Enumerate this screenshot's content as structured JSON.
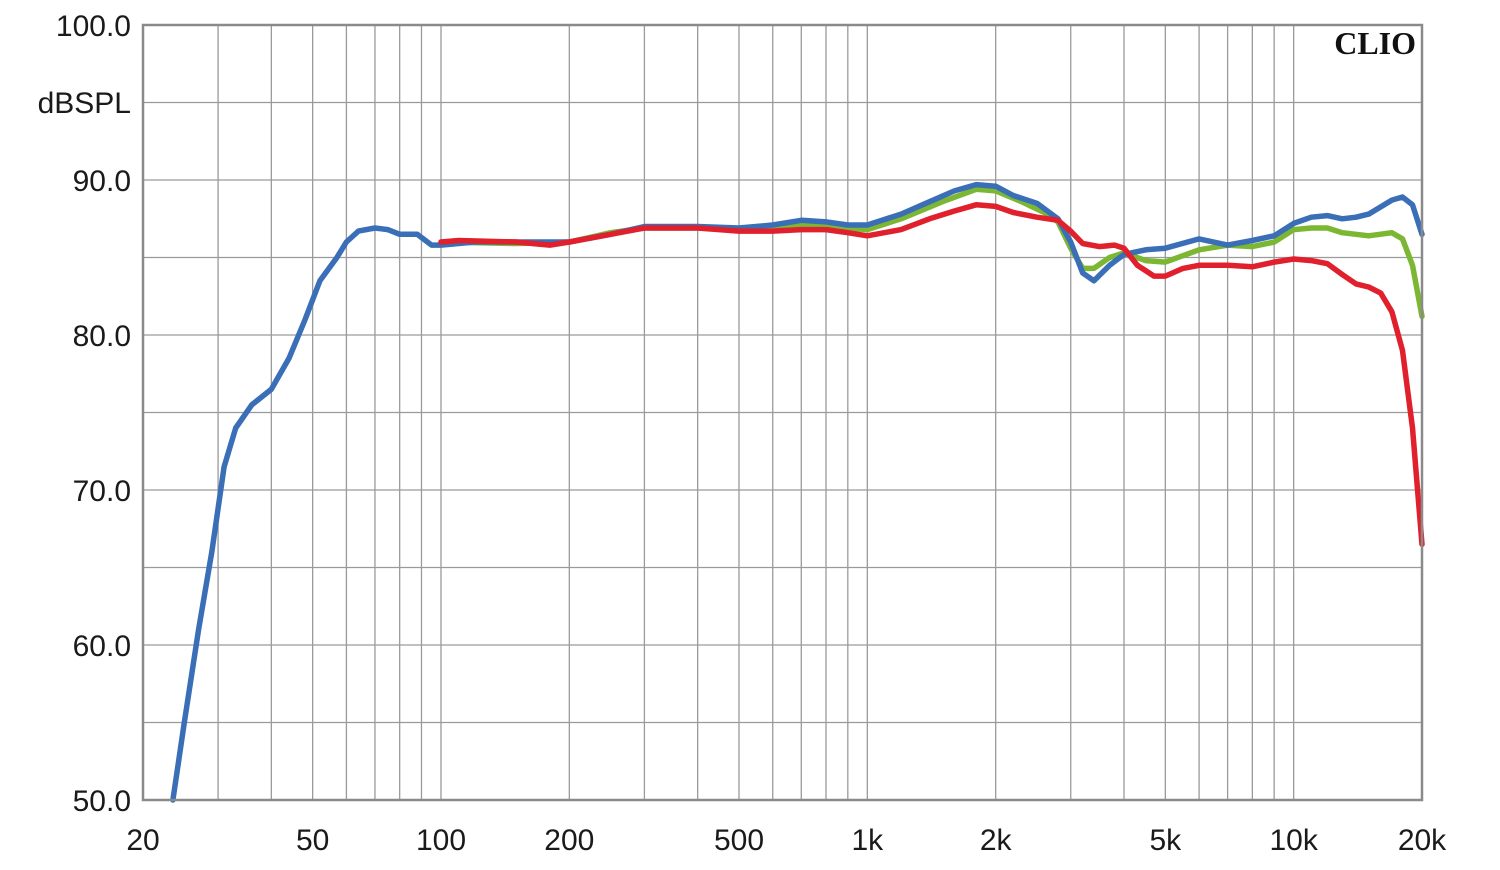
{
  "chart_data": {
    "type": "line",
    "title": "",
    "brand": "CLIO",
    "xlabel": "",
    "ylabel": "dBSPL",
    "xscale": "log",
    "xlim": [
      20,
      20000
    ],
    "ylim": [
      50,
      100
    ],
    "grid": true,
    "x_ticks": [
      {
        "value": 20,
        "label": "20"
      },
      {
        "value": 50,
        "label": "50"
      },
      {
        "value": 100,
        "label": "100"
      },
      {
        "value": 200,
        "label": "200"
      },
      {
        "value": 500,
        "label": "500"
      },
      {
        "value": 1000,
        "label": "1k"
      },
      {
        "value": 2000,
        "label": "2k"
      },
      {
        "value": 5000,
        "label": "5k"
      },
      {
        "value": 10000,
        "label": "10k"
      },
      {
        "value": 20000,
        "label": "20k"
      }
    ],
    "y_ticks": [
      {
        "value": 100,
        "label": "100.0"
      },
      {
        "value": 90,
        "label": "90.0"
      },
      {
        "value": 80,
        "label": "80.0"
      },
      {
        "value": 70,
        "label": "70.0"
      },
      {
        "value": 60,
        "label": "60.0"
      },
      {
        "value": 50,
        "label": "50.0"
      }
    ],
    "series": [
      {
        "color": "#7cb733",
        "points": [
          [
            100,
            86.0
          ],
          [
            150,
            85.9
          ],
          [
            200,
            86.0
          ],
          [
            250,
            86.6
          ],
          [
            300,
            86.9
          ],
          [
            400,
            86.9
          ],
          [
            500,
            86.8
          ],
          [
            600,
            86.9
          ],
          [
            700,
            87.1
          ],
          [
            800,
            87.0
          ],
          [
            1000,
            86.8
          ],
          [
            1200,
            87.5
          ],
          [
            1500,
            88.6
          ],
          [
            1800,
            89.4
          ],
          [
            2000,
            89.3
          ],
          [
            2300,
            88.6
          ],
          [
            2600,
            87.9
          ],
          [
            2800,
            87.3
          ],
          [
            3000,
            85.6
          ],
          [
            3200,
            84.3
          ],
          [
            3400,
            84.3
          ],
          [
            3700,
            85.0
          ],
          [
            4000,
            85.3
          ],
          [
            4500,
            84.8
          ],
          [
            5000,
            84.7
          ],
          [
            6000,
            85.5
          ],
          [
            7000,
            85.8
          ],
          [
            8000,
            85.7
          ],
          [
            9000,
            86.0
          ],
          [
            10000,
            86.8
          ],
          [
            11000,
            86.9
          ],
          [
            12000,
            86.9
          ],
          [
            13000,
            86.6
          ],
          [
            15000,
            86.4
          ],
          [
            17000,
            86.6
          ],
          [
            18000,
            86.2
          ],
          [
            19000,
            84.5
          ],
          [
            20000,
            81.2
          ]
        ]
      },
      {
        "color": "#3a6fb8",
        "points": [
          [
            23.5,
            50.0
          ],
          [
            25,
            55.0
          ],
          [
            27,
            61.0
          ],
          [
            29,
            66.0
          ],
          [
            31,
            71.5
          ],
          [
            33,
            74.0
          ],
          [
            36,
            75.5
          ],
          [
            40,
            76.5
          ],
          [
            44,
            78.5
          ],
          [
            48,
            81.0
          ],
          [
            52,
            83.5
          ],
          [
            57,
            85.0
          ],
          [
            60,
            86.0
          ],
          [
            64,
            86.7
          ],
          [
            70,
            86.9
          ],
          [
            75,
            86.8
          ],
          [
            80,
            86.5
          ],
          [
            88,
            86.5
          ],
          [
            95,
            85.8
          ],
          [
            100,
            85.8
          ],
          [
            120,
            86.0
          ],
          [
            150,
            86.0
          ],
          [
            200,
            86.0
          ],
          [
            250,
            86.5
          ],
          [
            300,
            87.0
          ],
          [
            400,
            87.0
          ],
          [
            500,
            86.9
          ],
          [
            600,
            87.1
          ],
          [
            700,
            87.4
          ],
          [
            800,
            87.3
          ],
          [
            900,
            87.1
          ],
          [
            1000,
            87.1
          ],
          [
            1200,
            87.8
          ],
          [
            1400,
            88.6
          ],
          [
            1600,
            89.3
          ],
          [
            1800,
            89.7
          ],
          [
            2000,
            89.6
          ],
          [
            2200,
            89.0
          ],
          [
            2500,
            88.5
          ],
          [
            2800,
            87.5
          ],
          [
            3000,
            86.0
          ],
          [
            3200,
            84.0
          ],
          [
            3400,
            83.5
          ],
          [
            3700,
            84.5
          ],
          [
            4000,
            85.2
          ],
          [
            4500,
            85.5
          ],
          [
            5000,
            85.6
          ],
          [
            6000,
            86.2
          ],
          [
            7000,
            85.8
          ],
          [
            8000,
            86.1
          ],
          [
            9000,
            86.4
          ],
          [
            10000,
            87.2
          ],
          [
            11000,
            87.6
          ],
          [
            12000,
            87.7
          ],
          [
            13000,
            87.5
          ],
          [
            14000,
            87.6
          ],
          [
            15000,
            87.8
          ],
          [
            17000,
            88.7
          ],
          [
            18000,
            88.9
          ],
          [
            19000,
            88.4
          ],
          [
            20000,
            86.5
          ]
        ]
      },
      {
        "color": "#e0202c",
        "points": [
          [
            100,
            86.0
          ],
          [
            110,
            86.1
          ],
          [
            150,
            86.0
          ],
          [
            180,
            85.8
          ],
          [
            200,
            86.0
          ],
          [
            250,
            86.5
          ],
          [
            300,
            86.9
          ],
          [
            400,
            86.9
          ],
          [
            500,
            86.7
          ],
          [
            600,
            86.7
          ],
          [
            700,
            86.8
          ],
          [
            800,
            86.8
          ],
          [
            900,
            86.6
          ],
          [
            1000,
            86.4
          ],
          [
            1200,
            86.8
          ],
          [
            1400,
            87.5
          ],
          [
            1600,
            88.0
          ],
          [
            1800,
            88.4
          ],
          [
            2000,
            88.3
          ],
          [
            2200,
            87.9
          ],
          [
            2500,
            87.6
          ],
          [
            2800,
            87.4
          ],
          [
            3000,
            86.7
          ],
          [
            3200,
            85.9
          ],
          [
            3500,
            85.7
          ],
          [
            3800,
            85.8
          ],
          [
            4000,
            85.6
          ],
          [
            4300,
            84.5
          ],
          [
            4700,
            83.8
          ],
          [
            5000,
            83.8
          ],
          [
            5500,
            84.3
          ],
          [
            6000,
            84.5
          ],
          [
            7000,
            84.5
          ],
          [
            8000,
            84.4
          ],
          [
            9000,
            84.7
          ],
          [
            10000,
            84.9
          ],
          [
            11000,
            84.8
          ],
          [
            12000,
            84.6
          ],
          [
            13000,
            83.9
          ],
          [
            14000,
            83.3
          ],
          [
            15000,
            83.1
          ],
          [
            16000,
            82.7
          ],
          [
            17000,
            81.5
          ],
          [
            18000,
            79.0
          ],
          [
            19000,
            74.0
          ],
          [
            20000,
            66.5
          ]
        ]
      }
    ]
  }
}
